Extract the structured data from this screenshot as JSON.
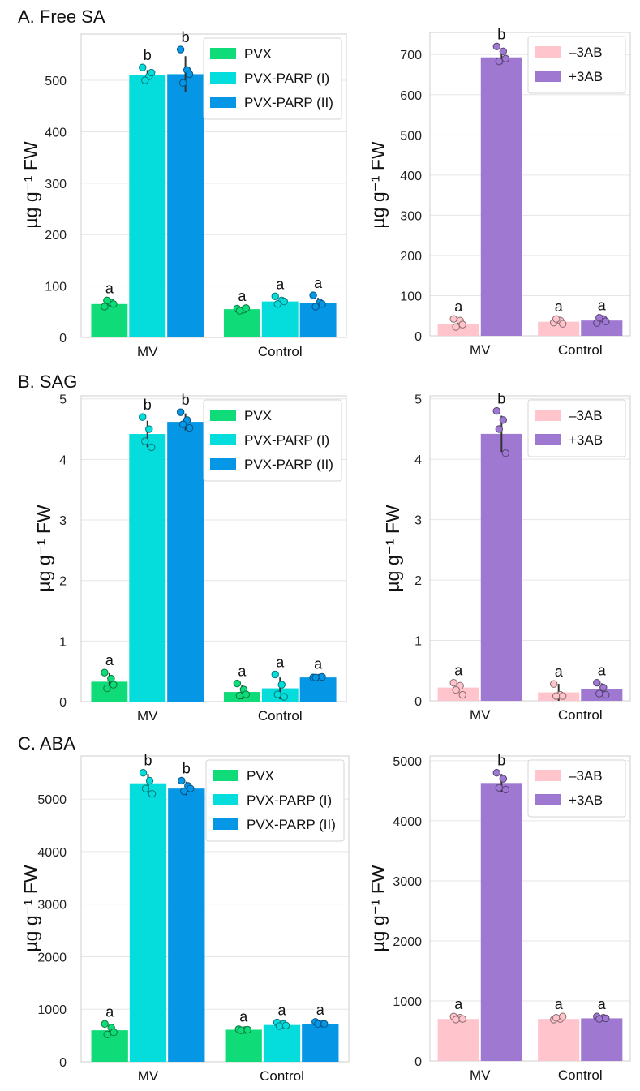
{
  "panel_titles": {
    "A": "A. Free SA",
    "B": "B. SAG",
    "C": "C. ABA"
  },
  "ylabel": "µg g⁻¹ FW",
  "colors": {
    "PVX": "#0fdc78",
    "PVX-PARP (I)": "#05dcdc",
    "PVX-PARP (II)": "#0596e6",
    "-3AB": "#ffc4cc",
    "+3AB": "#9f78d2"
  },
  "chart_data": [
    {
      "id": "A-left",
      "type": "bar",
      "panel": "A",
      "categories": [
        "MV",
        "Control"
      ],
      "series": [
        {
          "name": "PVX",
          "values": [
            65,
            55
          ],
          "points": [
            [
              60,
              68,
              72,
              65
            ],
            [
              56,
              54,
              52,
              57
            ]
          ],
          "err": [
            4,
            2
          ],
          "letters": [
            "a",
            "a"
          ]
        },
        {
          "name": "PVX-PARP (I)",
          "values": [
            510,
            70
          ],
          "points": [
            [
              525,
              508,
              500,
              515
            ],
            [
              80,
              72,
              65,
              70
            ]
          ],
          "err": [
            10,
            6
          ],
          "letters": [
            "b",
            "a"
          ]
        },
        {
          "name": "PVX-PARP (II)",
          "values": [
            512,
            67
          ],
          "points": [
            [
              560,
              520,
              495,
              512
            ],
            [
              82,
              68,
              60,
              65
            ]
          ],
          "err": [
            35,
            10
          ],
          "letters": [
            "b",
            "a"
          ]
        }
      ],
      "yticks": [
        0,
        100,
        200,
        300,
        400,
        500
      ],
      "ylim": [
        0,
        590
      ],
      "legend": "top-right"
    },
    {
      "id": "A-right",
      "type": "bar",
      "panel": "A",
      "categories": [
        "MV",
        "Control"
      ],
      "series": [
        {
          "name": "-3AB",
          "label": "–3AB",
          "values": [
            30,
            35
          ],
          "points": [
            [
              42,
              38,
              22,
              28
            ],
            [
              33,
              38,
              42,
              30
            ]
          ],
          "err": [
            6,
            4
          ],
          "letters": [
            "a",
            "a"
          ]
        },
        {
          "name": "+3AB",
          "label": "+3AB",
          "values": [
            693,
            38
          ],
          "points": [
            [
              720,
              708,
              683,
              690
            ],
            [
              32,
              42,
              45,
              36
            ]
          ],
          "err": [
            17,
            4
          ],
          "letters": [
            "b",
            "a"
          ]
        }
      ],
      "yticks": [
        0,
        100,
        200,
        300,
        400,
        500,
        600,
        700
      ],
      "ylim": [
        0,
        755
      ],
      "legend": "top-right"
    },
    {
      "id": "B-left",
      "type": "bar",
      "panel": "B",
      "categories": [
        "MV",
        "Control"
      ],
      "series": [
        {
          "name": "PVX",
          "values": [
            0.33,
            0.16
          ],
          "points": [
            [
              0.48,
              0.38,
              0.22,
              0.28
            ],
            [
              0.3,
              0.2,
              0.1,
              0.12
            ]
          ],
          "err": [
            0.14,
            0.12
          ],
          "letters": [
            "a",
            "a"
          ]
        },
        {
          "name": "PVX-PARP (I)",
          "values": [
            4.42,
            0.22
          ],
          "points": [
            [
              4.7,
              4.5,
              4.3,
              4.2
            ],
            [
              0.45,
              0.28,
              0.12,
              0.08
            ]
          ],
          "err": [
            0.22,
            0.18
          ],
          "letters": [
            "b",
            "a"
          ]
        },
        {
          "name": "PVX-PARP (II)",
          "values": [
            4.62,
            0.4
          ],
          "points": [
            [
              4.78,
              4.65,
              4.58,
              4.52
            ],
            [
              0.4,
              0.4,
              0.4,
              0.41
            ]
          ],
          "err": [
            0.14,
            0.02
          ],
          "letters": [
            "b",
            "a"
          ]
        }
      ],
      "yticks": [
        0,
        1,
        2,
        3,
        4,
        5
      ],
      "ylim": [
        0,
        5.05
      ],
      "legend": "top-right"
    },
    {
      "id": "B-right",
      "type": "bar",
      "panel": "B",
      "categories": [
        "MV",
        "Control"
      ],
      "series": [
        {
          "name": "-3AB",
          "label": "–3AB",
          "values": [
            0.22,
            0.14
          ],
          "points": [
            [
              0.3,
              0.25,
              0.18,
              0.1
            ],
            [
              0.28,
              0.1,
              0.08,
              0.08
            ]
          ],
          "err": [
            0.08,
            0.14
          ],
          "letters": [
            "a",
            "a"
          ]
        },
        {
          "name": "+3AB",
          "label": "+3AB",
          "values": [
            4.42,
            0.19
          ],
          "points": [
            [
              4.8,
              4.65,
              4.5,
              4.1
            ],
            [
              0.3,
              0.22,
              0.12,
              0.1
            ]
          ],
          "err": [
            0.3,
            0.1
          ],
          "letters": [
            "b",
            "a"
          ]
        }
      ],
      "yticks": [
        0,
        1,
        2,
        3,
        4,
        5
      ],
      "ylim": [
        0,
        5.05
      ],
      "legend": "top-right"
    },
    {
      "id": "C-left",
      "type": "bar",
      "panel": "C",
      "categories": [
        "MV",
        "Control"
      ],
      "series": [
        {
          "name": "PVX",
          "values": [
            600,
            610
          ],
          "points": [
            [
              720,
              650,
              520,
              560
            ],
            [
              620,
              605,
              600,
              610
            ]
          ],
          "err": [
            90,
            15
          ],
          "letters": [
            "a",
            "a"
          ]
        },
        {
          "name": "PVX-PARP (I)",
          "values": [
            5300,
            700
          ],
          "points": [
            [
              5500,
              5350,
              5200,
              5100
            ],
            [
              750,
              720,
              680,
              690
            ]
          ],
          "err": [
            180,
            40
          ],
          "letters": [
            "b",
            "a"
          ]
        },
        {
          "name": "PVX-PARP (II)",
          "values": [
            5200,
            720
          ],
          "points": [
            [
              5350,
              5250,
              5150,
              5200
            ],
            [
              760,
              730,
              720,
              720
            ]
          ],
          "err": [
            130,
            30
          ],
          "letters": [
            "b",
            "a"
          ]
        }
      ],
      "yticks": [
        0,
        1000,
        2000,
        3000,
        4000,
        5000
      ],
      "ylim": [
        0,
        5820
      ],
      "legend": "top-right"
    },
    {
      "id": "C-right",
      "type": "bar",
      "panel": "C",
      "categories": [
        "MV",
        "Control"
      ],
      "series": [
        {
          "name": "-3AB",
          "label": "–3AB",
          "values": [
            700,
            700
          ],
          "points": [
            [
              740,
              720,
              690,
              700
            ],
            [
              690,
              700,
              720,
              740
            ]
          ],
          "err": [
            30,
            25
          ],
          "letters": [
            "a",
            "a"
          ]
        },
        {
          "name": "+3AB",
          "label": "+3AB",
          "values": [
            4630,
            710
          ],
          "points": [
            [
              4800,
              4700,
              4550,
              4520
            ],
            [
              740,
              720,
              700,
              710
            ]
          ],
          "err": [
            150,
            25
          ],
          "letters": [
            "b",
            "a"
          ]
        }
      ],
      "yticks": [
        0,
        1000,
        2000,
        3000,
        4000,
        5000
      ],
      "ylim": [
        0,
        5080
      ],
      "legend": "top-right"
    }
  ]
}
